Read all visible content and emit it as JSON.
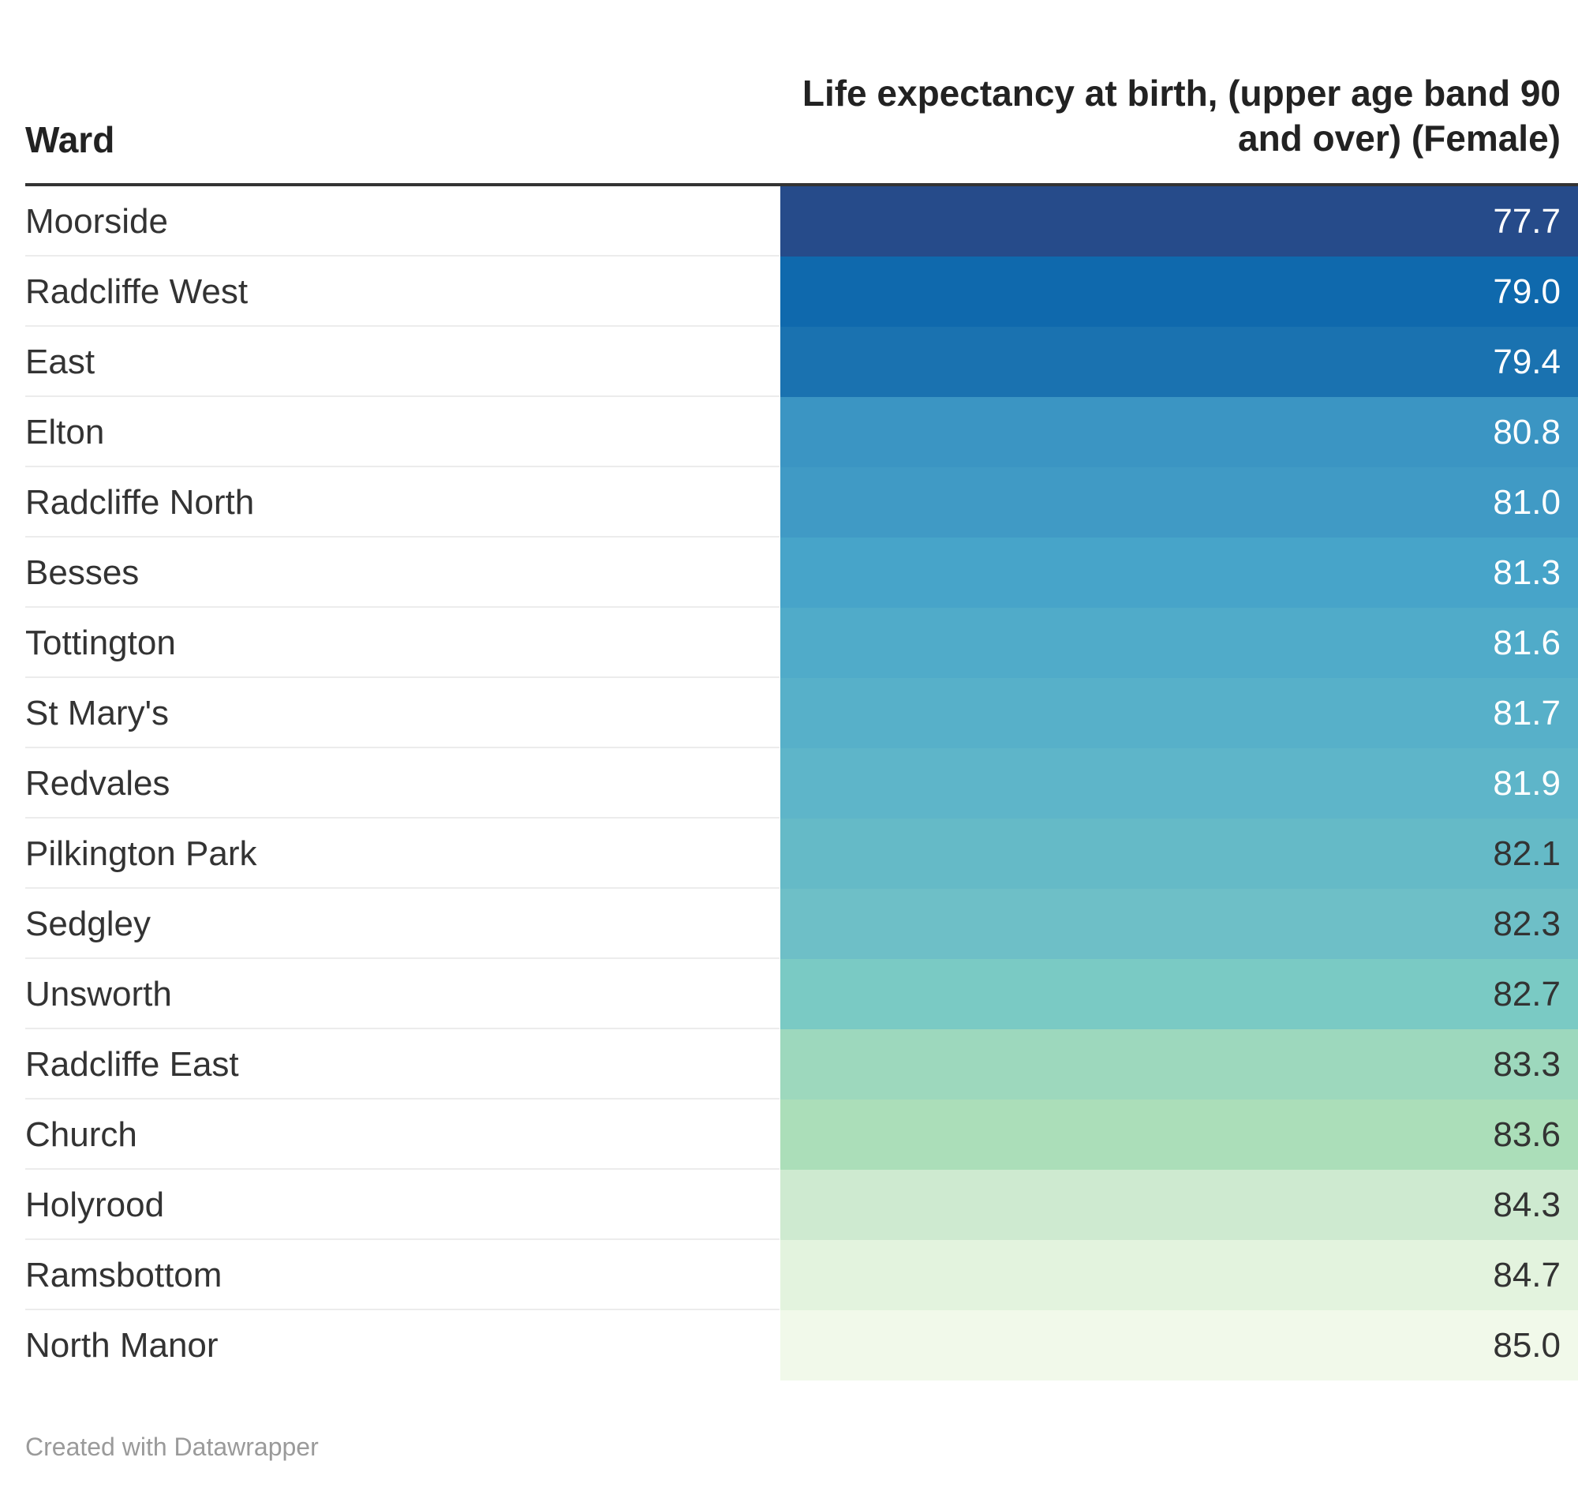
{
  "chart_data": {
    "type": "table",
    "columns": [
      "Ward",
      "Life expectancy at birth, (upper age band 90 and over) (Female)"
    ],
    "rows": [
      {
        "ward": "Moorside",
        "value": "77.7",
        "color": "#264b8a",
        "text_color": "#ffffff"
      },
      {
        "ward": "Radcliffe West",
        "value": "79.0",
        "color": "#0f69ad",
        "text_color": "#ffffff"
      },
      {
        "ward": "East",
        "value": "79.4",
        "color": "#1a72b0",
        "text_color": "#ffffff"
      },
      {
        "ward": "Elton",
        "value": "80.8",
        "color": "#3b95c3",
        "text_color": "#ffffff"
      },
      {
        "ward": "Radcliffe North",
        "value": "81.0",
        "color": "#409ac5",
        "text_color": "#ffffff"
      },
      {
        "ward": "Besses",
        "value": "81.3",
        "color": "#47a4c9",
        "text_color": "#ffffff"
      },
      {
        "ward": "Tottington",
        "value": "81.6",
        "color": "#50abc9",
        "text_color": "#ffffff"
      },
      {
        "ward": "St Mary's",
        "value": "81.7",
        "color": "#57b0c9",
        "text_color": "#ffffff"
      },
      {
        "ward": "Redvales",
        "value": "81.9",
        "color": "#5eb5c9",
        "text_color": "#ffffff"
      },
      {
        "ward": "Pilkington Park",
        "value": "82.1",
        "color": "#65bac7",
        "text_color": "#333333"
      },
      {
        "ward": "Sedgley",
        "value": "82.3",
        "color": "#6ebfc7",
        "text_color": "#333333"
      },
      {
        "ward": "Unsworth",
        "value": "82.7",
        "color": "#7acac4",
        "text_color": "#333333"
      },
      {
        "ward": "Radcliffe East",
        "value": "83.3",
        "color": "#9dd8bd",
        "text_color": "#333333"
      },
      {
        "ward": "Church",
        "value": "83.6",
        "color": "#abdeb9",
        "text_color": "#333333"
      },
      {
        "ward": "Holyrood",
        "value": "84.3",
        "color": "#ceead0",
        "text_color": "#333333"
      },
      {
        "ward": "Ramsbottom",
        "value": "84.7",
        "color": "#e3f3de",
        "text_color": "#333333"
      },
      {
        "ward": "North Manor",
        "value": "85.0",
        "color": "#f1f9ea",
        "text_color": "#333333"
      }
    ]
  },
  "footer": "Created with Datawrapper"
}
